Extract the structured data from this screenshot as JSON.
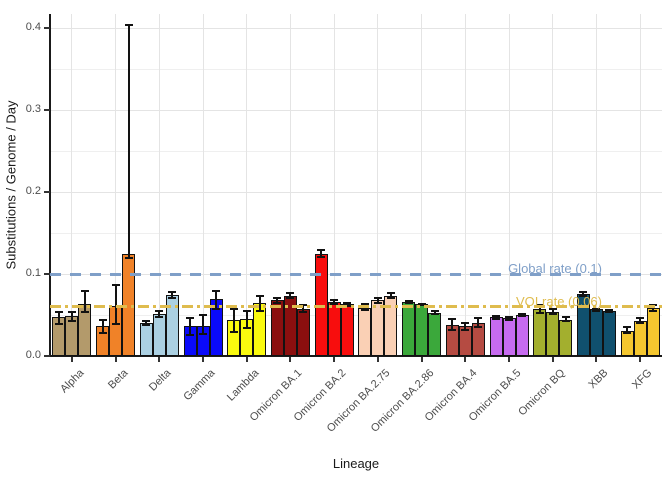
{
  "chart_data": {
    "type": "bar",
    "title": "",
    "xlabel": "Lineage",
    "ylabel": "Substitutions / Genome / Day",
    "ylim": [
      0,
      0.417
    ],
    "grid": true,
    "legend_position": "none",
    "y_axis": {
      "tick_labels": [
        "0.0",
        "0.1",
        "0.2",
        "0.3",
        "0.4"
      ],
      "tick_values": [
        0.0,
        0.1,
        0.2,
        0.3,
        0.4
      ],
      "minor_tick_values": [
        0.05,
        0.15,
        0.25,
        0.35
      ]
    },
    "categories": [
      "Alpha",
      "Beta",
      "Delta",
      "Gamma",
      "Lambda",
      "Omicron BA.1",
      "Omicron BA.2",
      "Omicron BA.2.75",
      "Omicron BA.2.86",
      "Omicron BA.4",
      "Omicron BA.5",
      "Omicron BQ",
      "XBB",
      "XFG"
    ],
    "groups": [
      {
        "lineage": "Alpha",
        "color": "#B39A6B",
        "bars": [
          {
            "v": 0.048,
            "lo": 0.038,
            "hi": 0.055
          },
          {
            "v": 0.049,
            "lo": 0.042,
            "hi": 0.055
          },
          {
            "v": 0.063,
            "lo": 0.052,
            "hi": 0.08
          }
        ]
      },
      {
        "lineage": "Beta",
        "color": "#F08228",
        "bars": [
          {
            "v": 0.036,
            "lo": 0.027,
            "hi": 0.045
          },
          {
            "v": 0.061,
            "lo": 0.038,
            "hi": 0.088
          },
          {
            "v": 0.125,
            "lo": 0.118,
            "hi": 0.405
          }
        ]
      },
      {
        "lineage": "Delta",
        "color": "#ABD0E2",
        "bars": [
          {
            "v": 0.04,
            "lo": 0.036,
            "hi": 0.044
          },
          {
            "v": 0.051,
            "lo": 0.046,
            "hi": 0.056
          },
          {
            "v": 0.074,
            "lo": 0.069,
            "hi": 0.079
          }
        ]
      },
      {
        "lineage": "Gamma",
        "color": "#0A0AFA",
        "bars": [
          {
            "v": 0.037,
            "lo": 0.025,
            "hi": 0.048
          },
          {
            "v": 0.037,
            "lo": 0.026,
            "hi": 0.051
          },
          {
            "v": 0.069,
            "lo": 0.056,
            "hi": 0.081
          }
        ]
      },
      {
        "lineage": "Lambda",
        "color": "#FAFA0F",
        "bars": [
          {
            "v": 0.044,
            "lo": 0.028,
            "hi": 0.059
          },
          {
            "v": 0.045,
            "lo": 0.033,
            "hi": 0.056
          },
          {
            "v": 0.065,
            "lo": 0.054,
            "hi": 0.075
          }
        ]
      },
      {
        "lineage": "Omicron BA.1",
        "color": "#8B0F0F",
        "bars": [
          {
            "v": 0.068,
            "lo": 0.064,
            "hi": 0.072
          },
          {
            "v": 0.073,
            "lo": 0.069,
            "hi": 0.078
          },
          {
            "v": 0.057,
            "lo": 0.053,
            "hi": 0.063
          }
        ]
      },
      {
        "lineage": "Omicron BA.2",
        "color": "#F80D0D",
        "bars": [
          {
            "v": 0.125,
            "lo": 0.12,
            "hi": 0.13
          },
          {
            "v": 0.066,
            "lo": 0.062,
            "hi": 0.069
          },
          {
            "v": 0.063,
            "lo": 0.06,
            "hi": 0.066
          }
        ]
      },
      {
        "lineage": "Omicron BA.2.75",
        "color": "#FAD0B5",
        "bars": [
          {
            "v": 0.059,
            "lo": 0.055,
            "hi": 0.065
          },
          {
            "v": 0.068,
            "lo": 0.064,
            "hi": 0.072
          },
          {
            "v": 0.073,
            "lo": 0.069,
            "hi": 0.078
          }
        ]
      },
      {
        "lineage": "Omicron BA.2.86",
        "color": "#3BA83B",
        "bars": [
          {
            "v": 0.066,
            "lo": 0.064,
            "hi": 0.068
          },
          {
            "v": 0.063,
            "lo": 0.061,
            "hi": 0.065
          },
          {
            "v": 0.053,
            "lo": 0.05,
            "hi": 0.056
          }
        ]
      },
      {
        "lineage": "Omicron BA.4",
        "color": "#B54B42",
        "bars": [
          {
            "v": 0.038,
            "lo": 0.031,
            "hi": 0.046
          },
          {
            "v": 0.036,
            "lo": 0.031,
            "hi": 0.042
          },
          {
            "v": 0.04,
            "lo": 0.034,
            "hi": 0.047
          }
        ]
      },
      {
        "lineage": "Omicron BA.5",
        "color": "#C76BF0",
        "bars": [
          {
            "v": 0.047,
            "lo": 0.044,
            "hi": 0.05
          },
          {
            "v": 0.046,
            "lo": 0.043,
            "hi": 0.049
          },
          {
            "v": 0.05,
            "lo": 0.047,
            "hi": 0.053
          }
        ]
      },
      {
        "lineage": "Omicron BQ",
        "color": "#A3AF2E",
        "bars": [
          {
            "v": 0.057,
            "lo": 0.051,
            "hi": 0.064
          },
          {
            "v": 0.054,
            "lo": 0.05,
            "hi": 0.058
          },
          {
            "v": 0.044,
            "lo": 0.041,
            "hi": 0.049
          }
        ]
      },
      {
        "lineage": "XBB",
        "color": "#10506E",
        "bars": [
          {
            "v": 0.076,
            "lo": 0.072,
            "hi": 0.079
          },
          {
            "v": 0.057,
            "lo": 0.054,
            "hi": 0.059
          },
          {
            "v": 0.055,
            "lo": 0.053,
            "hi": 0.057
          }
        ]
      },
      {
        "lineage": "XFG",
        "color": "#F5C72F",
        "bars": [
          {
            "v": 0.031,
            "lo": 0.027,
            "hi": 0.036
          },
          {
            "v": 0.043,
            "lo": 0.039,
            "hi": 0.048
          },
          {
            "v": 0.058,
            "lo": 0.054,
            "hi": 0.064
          }
        ]
      }
    ],
    "reference_lines": [
      {
        "label": "Global rate (0.1)",
        "value": 0.1,
        "color": "#7F9FC8",
        "style": "dashed"
      },
      {
        "label": "VOI rate (0.06)",
        "value": 0.06,
        "color": "#DFBC4E",
        "style": "dashdot"
      }
    ],
    "colors": {
      "background": "#FFFFFF",
      "axis_line": "#1A1A1A",
      "grid_major": "#E4E4E4",
      "grid_minor": "#EFEFEF",
      "tick_text": "#4D4D4D",
      "bar_border": "#121212"
    }
  }
}
